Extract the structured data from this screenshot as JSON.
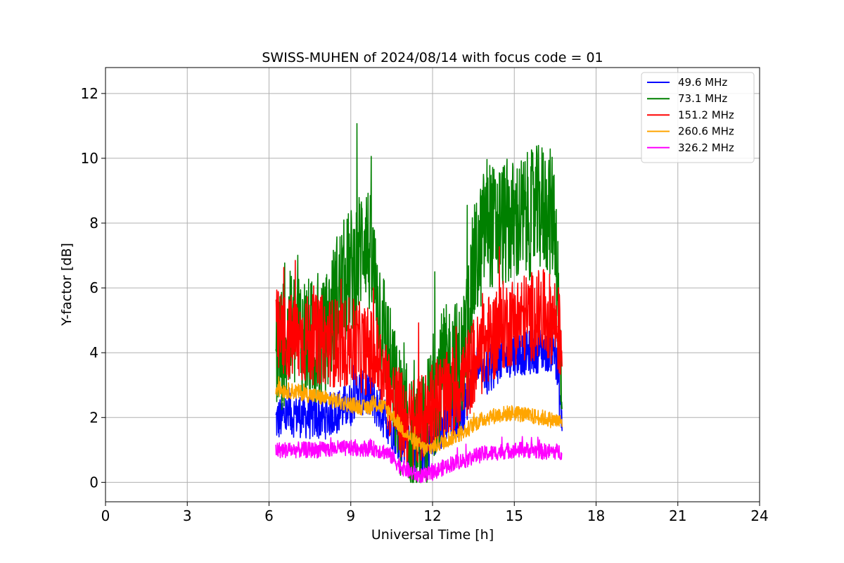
{
  "chart_data": {
    "type": "line",
    "title": "SWISS-MUHEN of 2024/08/14 with focus code = 01",
    "xlabel": "Universal Time [h]",
    "ylabel": "Y-factor [dB]",
    "xlim": [
      0,
      24
    ],
    "ylim": [
      -0.6,
      12.8
    ],
    "xticks": [
      0,
      3,
      6,
      9,
      12,
      15,
      18,
      21,
      24
    ],
    "yticks": [
      0,
      2,
      4,
      6,
      8,
      10,
      12
    ],
    "grid": true,
    "legend_position": "top-right",
    "series": [
      {
        "name": "  49.6 MHz",
        "color": "#0000ff",
        "x": [
          6.25,
          6.5,
          7.0,
          7.5,
          8.0,
          8.5,
          9.0,
          9.25,
          9.5,
          9.75,
          10.0,
          10.25,
          10.5,
          10.75,
          11.0,
          11.25,
          11.5,
          11.75,
          12.0,
          12.25,
          12.5,
          12.75,
          13.0,
          13.25,
          13.5,
          13.75,
          14.0,
          14.25,
          14.5,
          15.0,
          15.5,
          16.0,
          16.5,
          16.75
        ],
        "values": [
          1.9,
          2.0,
          2.1,
          2.0,
          2.0,
          2.2,
          2.4,
          2.9,
          2.7,
          2.6,
          2.3,
          2.0,
          1.7,
          1.4,
          1.2,
          1.0,
          0.8,
          1.0,
          1.3,
          1.6,
          1.8,
          2.0,
          2.1,
          2.5,
          3.5,
          3.8,
          3.3,
          3.6,
          3.8,
          4.0,
          4.0,
          4.1,
          4.1,
          1.9
        ],
        "noise": 0.7
      },
      {
        "name": "  73.1 MHz",
        "color": "#008000",
        "x": [
          6.25,
          6.5,
          7.0,
          7.5,
          8.0,
          8.5,
          9.0,
          9.25,
          9.5,
          9.75,
          10.0,
          10.25,
          10.5,
          10.75,
          11.0,
          11.25,
          11.5,
          11.75,
          12.0,
          12.25,
          12.5,
          12.75,
          13.0,
          13.25,
          13.5,
          13.75,
          14.0,
          14.25,
          14.5,
          15.0,
          15.5,
          16.0,
          16.5,
          16.75
        ],
        "values": [
          4.0,
          4.2,
          4.8,
          4.3,
          4.2,
          5.8,
          6.5,
          6.8,
          7.8,
          6.8,
          5.6,
          4.5,
          3.2,
          2.3,
          1.8,
          1.2,
          1.0,
          1.6,
          2.6,
          3.2,
          3.5,
          3.8,
          3.5,
          4.5,
          6.5,
          7.2,
          8.2,
          7.8,
          8.0,
          8.0,
          8.2,
          8.5,
          8.2,
          2.5
        ],
        "noise": 2.0
      },
      {
        "name": "  151.2 MHz",
        "color": "#ff0000",
        "x": [
          6.25,
          6.5,
          7.0,
          7.5,
          8.0,
          8.5,
          9.0,
          9.25,
          9.5,
          9.75,
          10.0,
          10.25,
          10.5,
          10.75,
          11.0,
          11.25,
          11.5,
          11.75,
          12.0,
          12.25,
          12.5,
          12.75,
          13.0,
          13.25,
          13.5,
          13.75,
          14.0,
          14.25,
          14.5,
          15.0,
          15.5,
          16.0,
          16.5,
          16.75
        ],
        "values": [
          4.6,
          4.5,
          4.4,
          4.4,
          4.4,
          4.3,
          4.3,
          4.2,
          4.1,
          4.0,
          3.8,
          3.2,
          2.6,
          2.2,
          1.9,
          1.7,
          1.8,
          2.1,
          2.5,
          2.6,
          2.6,
          2.8,
          3.0,
          3.3,
          3.7,
          3.9,
          4.4,
          4.5,
          4.8,
          5.0,
          5.1,
          5.2,
          5.0,
          4.2
        ],
        "noise": 1.4
      },
      {
        "name": "  260.6 MHz",
        "color": "#ffa500",
        "x": [
          6.25,
          6.5,
          7.0,
          7.5,
          8.0,
          8.5,
          9.0,
          9.25,
          9.5,
          9.75,
          10.0,
          10.25,
          10.5,
          10.75,
          11.0,
          11.25,
          11.5,
          11.75,
          12.0,
          12.25,
          12.5,
          12.75,
          13.0,
          13.25,
          13.5,
          13.75,
          14.0,
          14.25,
          14.5,
          15.0,
          15.5,
          16.0,
          16.5,
          16.75
        ],
        "values": [
          2.9,
          2.85,
          2.8,
          2.7,
          2.6,
          2.5,
          2.4,
          2.35,
          2.3,
          2.35,
          2.4,
          2.3,
          2.1,
          1.8,
          1.55,
          1.3,
          1.15,
          1.0,
          1.1,
          1.2,
          1.3,
          1.4,
          1.5,
          1.6,
          1.8,
          1.9,
          2.0,
          2.05,
          2.1,
          2.15,
          2.05,
          2.0,
          1.9,
          1.85
        ],
        "noise": 0.25
      },
      {
        "name": "  326.2 MHz",
        "color": "#ff00ff",
        "x": [
          6.25,
          6.5,
          7.0,
          7.5,
          8.0,
          8.5,
          9.0,
          9.25,
          9.5,
          9.75,
          10.0,
          10.25,
          10.5,
          10.75,
          11.0,
          11.25,
          11.5,
          11.75,
          12.0,
          12.25,
          12.5,
          12.75,
          13.0,
          13.25,
          13.5,
          13.75,
          14.0,
          14.25,
          14.5,
          15.0,
          15.5,
          16.0,
          16.5,
          16.75
        ],
        "values": [
          1.0,
          1.0,
          1.0,
          1.0,
          1.0,
          1.05,
          1.05,
          1.05,
          1.05,
          1.05,
          1.0,
          0.95,
          0.8,
          0.55,
          0.4,
          0.3,
          0.2,
          0.2,
          0.3,
          0.4,
          0.5,
          0.6,
          0.65,
          0.7,
          0.8,
          0.85,
          0.9,
          0.9,
          0.95,
          1.0,
          1.0,
          0.95,
          0.95,
          0.95
        ],
        "noise": 0.25
      }
    ]
  }
}
